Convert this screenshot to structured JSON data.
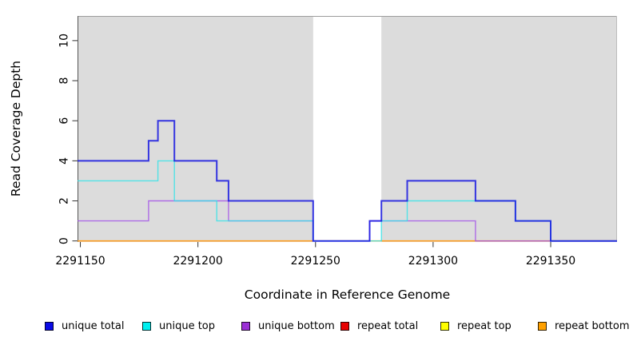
{
  "chart_data": {
    "type": "line",
    "style": "step-coverage",
    "title": "",
    "xlabel": "Coordinate in Reference Genome",
    "ylabel": "Read Coverage Depth",
    "xlim": [
      2291148.8,
      2291378.2
    ],
    "ylim": [
      0,
      11.23
    ],
    "grid": false,
    "legend_position": "bottom",
    "x_ticks": [
      {
        "value": 2291150,
        "label": "2291150"
      },
      {
        "value": 2291200,
        "label": "2291200"
      },
      {
        "value": 2291250,
        "label": "2291250"
      },
      {
        "value": 2291300,
        "label": "2291300"
      },
      {
        "value": 2291350,
        "label": "2291350"
      }
    ],
    "y_ticks": [
      {
        "value": 0,
        "label": "0"
      },
      {
        "value": 2,
        "label": "2"
      },
      {
        "value": 4,
        "label": "4"
      },
      {
        "value": 6,
        "label": "6"
      },
      {
        "value": 8,
        "label": "8"
      },
      {
        "value": 10,
        "label": "10"
      }
    ],
    "plot_background": {
      "covered_color": "#dcdcdc",
      "uncovered_color": "#ffffff",
      "covered_regions": [
        [
          2291148.8,
          2291249
        ],
        [
          2291278,
          2291378.2
        ]
      ],
      "uncovered_gap": [
        2291249,
        2291278
      ]
    },
    "series": [
      {
        "name": "repeat total",
        "color": "#e00000",
        "steps": [
          [
            2291148.8,
            0
          ]
        ]
      },
      {
        "name": "repeat top",
        "color": "#f5f500",
        "steps": [
          [
            2291148.8,
            0
          ]
        ]
      },
      {
        "name": "repeat bottom",
        "color": "#ff9e1f",
        "steps": [
          [
            2291148.8,
            0
          ]
        ]
      },
      {
        "name": "unique bottom",
        "color": "#a24fe8",
        "steps": [
          [
            2291148.8,
            1
          ],
          [
            2291179,
            2
          ],
          [
            2291213,
            1
          ],
          [
            2291249,
            0
          ],
          [
            2291273,
            1
          ],
          [
            2291318,
            0
          ]
        ]
      },
      {
        "name": "unique top",
        "color": "#30e3e8",
        "steps": [
          [
            2291148.8,
            3
          ],
          [
            2291183,
            4
          ],
          [
            2291190,
            2
          ],
          [
            2291208,
            1
          ],
          [
            2291249,
            0
          ],
          [
            2291278,
            1
          ],
          [
            2291289,
            2
          ],
          [
            2291335,
            1
          ],
          [
            2291350,
            0
          ]
        ]
      },
      {
        "name": "unique total",
        "color": "#1616e0",
        "steps": [
          [
            2291148.8,
            4
          ],
          [
            2291179,
            5
          ],
          [
            2291183,
            6
          ],
          [
            2291190,
            4
          ],
          [
            2291208,
            3
          ],
          [
            2291213,
            2
          ],
          [
            2291249,
            0
          ],
          [
            2291273,
            1
          ],
          [
            2291278,
            2
          ],
          [
            2291289,
            3
          ],
          [
            2291318,
            2
          ],
          [
            2291335,
            1
          ],
          [
            2291350,
            0
          ]
        ]
      }
    ]
  },
  "legend": {
    "items": [
      {
        "label": "unique total",
        "color": "#0a0ae6"
      },
      {
        "label": "unique top",
        "color": "#00efef"
      },
      {
        "label": "unique bottom",
        "color": "#9b30d6"
      },
      {
        "label": "repeat total",
        "color": "#e60000"
      },
      {
        "label": "repeat top",
        "color": "#ffff00"
      },
      {
        "label": "repeat bottom",
        "color": "#ffa000"
      }
    ]
  }
}
